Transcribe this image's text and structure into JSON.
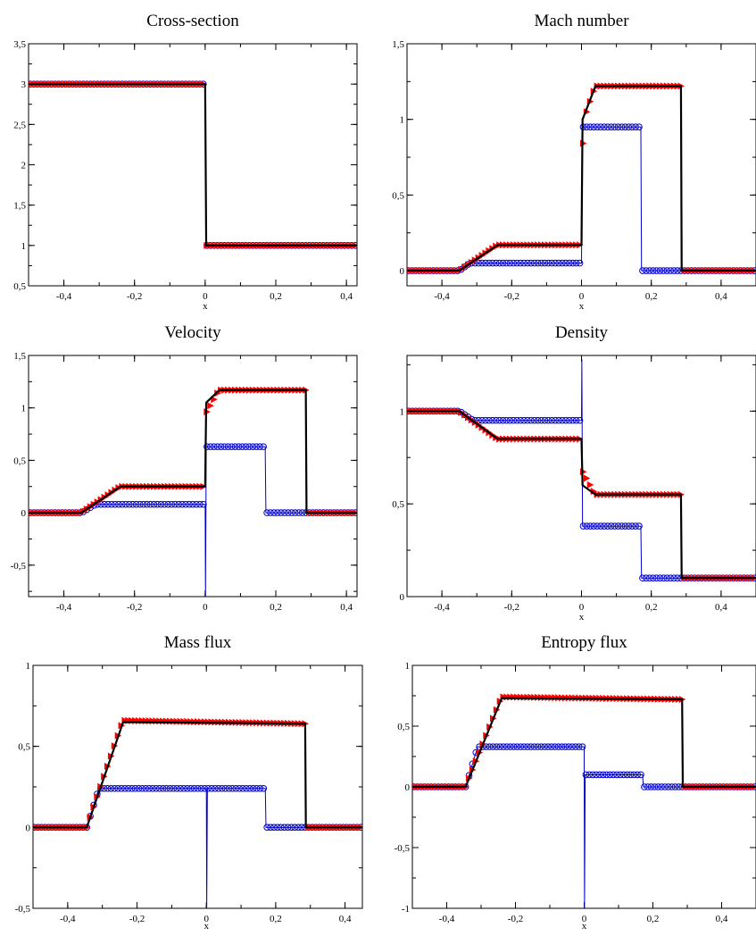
{
  "colors": {
    "exact": "#000000",
    "scheme_a": "#ff0000",
    "scheme_b": "#0000cc",
    "axes": "#000000"
  },
  "marker_shapes": {
    "scheme_a": "triangle-right",
    "scheme_b": "circle"
  },
  "chart_data": [
    {
      "type": "line",
      "title": "Cross-section",
      "xlabel": "x",
      "xlim": [
        -0.5,
        0.43
      ],
      "ylim": [
        0.5,
        3.5
      ],
      "xticks": [
        -0.4,
        -0.2,
        0,
        0.2,
        0.4
      ],
      "xtick_labels": [
        "-0,4",
        "-0,2",
        "0",
        "0,2",
        "0,4"
      ],
      "yticks": [
        0.5,
        1,
        1.5,
        2,
        2.5,
        3,
        3.5
      ],
      "ytick_labels": [
        "0,5",
        "1",
        "1,5",
        "2",
        "2,5",
        "3",
        "3,5"
      ],
      "series": [
        {
          "style": "solid",
          "color": "#000000",
          "x": [
            -0.5,
            0,
            0.003,
            0.43
          ],
          "y": [
            3,
            3,
            1,
            1
          ]
        },
        {
          "style": "markers",
          "marker": "triangle-right",
          "color": "#ff0000",
          "x_from": -0.495,
          "x_to": 0.425,
          "dx": 0.01,
          "points": [
            [
              -0.5,
              3
            ],
            [
              0,
              3
            ],
            [
              0.003,
              1
            ],
            [
              0.43,
              1
            ]
          ]
        },
        {
          "style": "line-markers",
          "marker": "circle",
          "color": "#0000cc",
          "x_from": -0.495,
          "x_to": 0.425,
          "dx": 0.01,
          "points": [
            [
              -0.5,
              3
            ],
            [
              0,
              3
            ],
            [
              0.003,
              1
            ],
            [
              0.43,
              1
            ]
          ]
        }
      ]
    },
    {
      "type": "line",
      "title": "Mach number",
      "xlabel": "x",
      "xlim": [
        -0.5,
        0.5
      ],
      "ylim": [
        -0.1,
        1.5
      ],
      "xticks": [
        -0.4,
        -0.2,
        0,
        0.2,
        0.4
      ],
      "xtick_labels": [
        "-0,4",
        "-0,2",
        "0",
        "0,2",
        "0,4"
      ],
      "yticks": [
        0,
        0.5,
        1,
        1.5
      ],
      "ytick_labels": [
        "0",
        "0,5",
        "1",
        "1,5"
      ],
      "series": [
        {
          "style": "solid",
          "color": "#000000",
          "x": [
            -0.5,
            -0.35,
            -0.24,
            0,
            0.003,
            0.04,
            0.285,
            0.287,
            0.5
          ],
          "y": [
            0,
            0,
            0.17,
            0.17,
            1,
            1.22,
            1.22,
            0,
            0
          ]
        },
        {
          "style": "markers",
          "marker": "triangle-right",
          "color": "#ff0000",
          "x_from": -0.495,
          "x_to": 0.495,
          "dx": 0.01,
          "points": [
            [
              -0.5,
              0
            ],
            [
              -0.35,
              0
            ],
            [
              -0.24,
              0.17
            ],
            [
              0,
              0.17
            ],
            [
              0.003,
              0.8
            ],
            [
              0.015,
              1.05
            ],
            [
              0.04,
              1.22
            ],
            [
              0.285,
              1.22
            ],
            [
              0.287,
              0
            ],
            [
              0.5,
              0
            ]
          ]
        },
        {
          "style": "line-markers",
          "marker": "circle",
          "color": "#0000cc",
          "x_from": -0.495,
          "x_to": 0.495,
          "dx": 0.01,
          "points": [
            [
              -0.5,
              0
            ],
            [
              -0.35,
              0
            ],
            [
              -0.32,
              0.05
            ],
            [
              0,
              0.05
            ],
            [
              0.003,
              0.95
            ],
            [
              0.17,
              0.95
            ],
            [
              0.172,
              0
            ],
            [
              0.5,
              0
            ]
          ]
        }
      ]
    },
    {
      "type": "line",
      "title": "Velocity",
      "xlabel": "",
      "xlim": [
        -0.5,
        0.43
      ],
      "ylim": [
        -0.8,
        1.5
      ],
      "xticks": [
        -0.4,
        -0.2,
        0,
        0.2,
        0.4
      ],
      "xtick_labels": [
        "-0,4",
        "-0,2",
        "0",
        "0,2",
        "0,4"
      ],
      "yticks": [
        -0.5,
        0,
        0.5,
        1,
        1.5
      ],
      "ytick_labels": [
        "-0,5",
        "0",
        "0,5",
        "1",
        "1,5"
      ],
      "series": [
        {
          "style": "solid",
          "color": "#000000",
          "x": [
            -0.5,
            -0.35,
            -0.24,
            0,
            0.003,
            0.04,
            0.285,
            0.287,
            0.43
          ],
          "y": [
            0,
            0,
            0.25,
            0.25,
            1.05,
            1.17,
            1.17,
            0,
            0
          ]
        },
        {
          "style": "markers",
          "marker": "triangle-right",
          "color": "#ff0000",
          "x_from": -0.495,
          "x_to": 0.425,
          "dx": 0.01,
          "points": [
            [
              -0.5,
              0
            ],
            [
              -0.35,
              0
            ],
            [
              -0.24,
              0.25
            ],
            [
              0,
              0.25
            ],
            [
              0.003,
              0.95
            ],
            [
              0.04,
              1.17
            ],
            [
              0.285,
              1.17
            ],
            [
              0.287,
              0
            ],
            [
              0.43,
              0
            ]
          ]
        },
        {
          "style": "line-markers",
          "marker": "circle",
          "color": "#0000cc",
          "x_from": -0.495,
          "x_to": 0.425,
          "dx": 0.01,
          "points": [
            [
              -0.5,
              0
            ],
            [
              -0.35,
              0
            ],
            [
              -0.31,
              0.08
            ],
            [
              0,
              0.08
            ],
            [
              0.001,
              -0.8
            ],
            [
              0.003,
              0.63
            ],
            [
              0.17,
              0.63
            ],
            [
              0.172,
              0
            ],
            [
              0.43,
              0
            ]
          ]
        }
      ]
    },
    {
      "type": "line",
      "title": "Density",
      "xlabel": "x",
      "xlim": [
        -0.5,
        0.5
      ],
      "ylim": [
        0,
        1.3
      ],
      "xticks": [
        -0.4,
        -0.2,
        0,
        0.2,
        0.4
      ],
      "xtick_labels": [
        "-0,4",
        "-0,2",
        "0",
        "0,2",
        "0,4"
      ],
      "yticks": [
        0,
        0.5,
        1
      ],
      "ytick_labels": [
        "0",
        "0,5",
        "1"
      ],
      "series": [
        {
          "style": "solid",
          "color": "#000000",
          "x": [
            -0.5,
            -0.35,
            -0.24,
            0,
            0.003,
            0.04,
            0.285,
            0.287,
            0.5
          ],
          "y": [
            1,
            1,
            0.85,
            0.85,
            0.6,
            0.55,
            0.55,
            0.1,
            0.1
          ]
        },
        {
          "style": "markers",
          "marker": "triangle-right",
          "color": "#ff0000",
          "x_from": -0.495,
          "x_to": 0.495,
          "dx": 0.01,
          "points": [
            [
              -0.5,
              1
            ],
            [
              -0.35,
              1
            ],
            [
              -0.24,
              0.85
            ],
            [
              0,
              0.85
            ],
            [
              0.003,
              0.68
            ],
            [
              0.04,
              0.55
            ],
            [
              0.285,
              0.55
            ],
            [
              0.287,
              0.1
            ],
            [
              0.5,
              0.1
            ]
          ]
        },
        {
          "style": "line-markers",
          "marker": "circle",
          "color": "#0000cc",
          "x_from": -0.495,
          "x_to": 0.495,
          "dx": 0.01,
          "points": [
            [
              -0.5,
              1
            ],
            [
              -0.35,
              1
            ],
            [
              -0.31,
              0.95
            ],
            [
              0,
              0.95
            ],
            [
              0.001,
              1.28
            ],
            [
              0.003,
              0.38
            ],
            [
              0.17,
              0.38
            ],
            [
              0.172,
              0.1
            ],
            [
              0.5,
              0.1
            ]
          ]
        }
      ]
    },
    {
      "type": "line",
      "title": "Mass flux",
      "xlabel": "x",
      "xlim": [
        -0.5,
        0.45
      ],
      "ylim": [
        -0.5,
        1
      ],
      "xticks": [
        -0.4,
        -0.2,
        0,
        0.2,
        0.4
      ],
      "xtick_labels": [
        "-0,4",
        "-0,2",
        "0",
        "0,2",
        "0,4"
      ],
      "yticks": [
        -0.5,
        0,
        0.5,
        1
      ],
      "ytick_labels": [
        "-0,5",
        "0",
        "0,5",
        "1"
      ],
      "series": [
        {
          "style": "solid",
          "color": "#000000",
          "x": [
            -0.5,
            -0.345,
            -0.24,
            0.285,
            0.287,
            0.45
          ],
          "y": [
            0,
            0,
            0.65,
            0.64,
            0,
            0
          ]
        },
        {
          "style": "markers",
          "marker": "triangle-right",
          "color": "#ff0000",
          "x_from": -0.495,
          "x_to": 0.445,
          "dx": 0.01,
          "points": [
            [
              -0.5,
              0
            ],
            [
              -0.345,
              0
            ],
            [
              -0.24,
              0.66
            ],
            [
              0.285,
              0.64
            ],
            [
              0.287,
              0
            ],
            [
              0.45,
              0
            ]
          ]
        },
        {
          "style": "line-markers",
          "marker": "circle",
          "color": "#0000cc",
          "x_from": -0.495,
          "x_to": 0.445,
          "dx": 0.01,
          "points": [
            [
              -0.5,
              0
            ],
            [
              -0.345,
              0
            ],
            [
              -0.31,
              0.24
            ],
            [
              0,
              0.24
            ],
            [
              0.001,
              -0.5
            ],
            [
              0.003,
              0.24
            ],
            [
              0.17,
              0.24
            ],
            [
              0.172,
              0
            ],
            [
              0.45,
              0
            ]
          ]
        }
      ]
    },
    {
      "type": "line",
      "title": "Entropy flux",
      "xlabel": "x",
      "xlim": [
        -0.5,
        0.5
      ],
      "ylim": [
        -1,
        1
      ],
      "xticks": [
        -0.4,
        -0.2,
        0,
        0.2,
        0.4
      ],
      "xtick_labels": [
        "-0,4",
        "-0,2",
        "0",
        "0,2",
        "0,4"
      ],
      "yticks": [
        -1,
        -0.5,
        0,
        0.5,
        1
      ],
      "ytick_labels": [
        "-1",
        "-0,5",
        "0",
        "0,5",
        "1"
      ],
      "series": [
        {
          "style": "solid",
          "color": "#000000",
          "x": [
            -0.5,
            -0.345,
            -0.24,
            0.285,
            0.287,
            0.5
          ],
          "y": [
            0,
            0,
            0.73,
            0.72,
            0,
            0
          ]
        },
        {
          "style": "markers",
          "marker": "triangle-right",
          "color": "#ff0000",
          "x_from": -0.495,
          "x_to": 0.495,
          "dx": 0.01,
          "points": [
            [
              -0.5,
              0
            ],
            [
              -0.345,
              0
            ],
            [
              -0.24,
              0.74
            ],
            [
              0.285,
              0.72
            ],
            [
              0.287,
              0
            ],
            [
              0.5,
              0
            ]
          ]
        },
        {
          "style": "line-markers",
          "marker": "circle",
          "color": "#0000cc",
          "x_from": -0.495,
          "x_to": 0.495,
          "dx": 0.01,
          "points": [
            [
              -0.5,
              0
            ],
            [
              -0.345,
              0
            ],
            [
              -0.31,
              0.33
            ],
            [
              0,
              0.33
            ],
            [
              0.001,
              -1
            ],
            [
              0.003,
              0.1
            ],
            [
              0.17,
              0.1
            ],
            [
              0.172,
              0
            ],
            [
              0.5,
              0
            ]
          ]
        }
      ]
    }
  ]
}
